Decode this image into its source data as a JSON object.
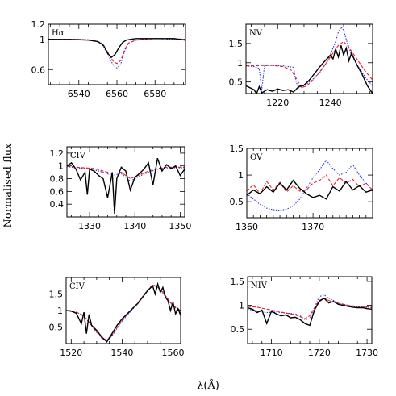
{
  "figure": {
    "ylabel": "Normalised flux",
    "xlabel": "λ(Å)"
  },
  "series_colors": {
    "observed": "#000000",
    "model_red": "#e8202a",
    "model_blue": "#2a35e6"
  },
  "chart_data": [
    {
      "type": "line",
      "label": "Hα",
      "xlim": [
        6524,
        6596
      ],
      "ylim": [
        0.4,
        1.2
      ],
      "xticks": [
        6540,
        6560,
        6580
      ],
      "yticks": [
        0.6,
        1,
        1.2
      ],
      "series": [
        {
          "role": "observed",
          "x": [
            6524,
            6535,
            6545,
            6550,
            6553,
            6555,
            6557,
            6559,
            6561,
            6563,
            6565,
            6567,
            6570,
            6580,
            6590,
            6596
          ],
          "y": [
            1.0,
            1.0,
            0.99,
            0.97,
            0.92,
            0.82,
            0.76,
            0.8,
            0.89,
            0.96,
            0.99,
            1.0,
            1.01,
            1.01,
            1.01,
            0.99
          ]
        },
        {
          "role": "model_red",
          "x": [
            6524,
            6540,
            6548,
            6552,
            6555,
            6558,
            6560,
            6562,
            6564,
            6566,
            6570,
            6580,
            6590,
            6596
          ],
          "y": [
            1.0,
            1.0,
            0.99,
            0.95,
            0.84,
            0.71,
            0.68,
            0.72,
            0.86,
            0.95,
            0.99,
            1.01,
            1.01,
            1.0
          ]
        },
        {
          "role": "model_blue",
          "x": [
            6524,
            6540,
            6548,
            6552,
            6555,
            6558,
            6560,
            6562,
            6564,
            6566,
            6570,
            6580,
            6590,
            6596
          ],
          "y": [
            1.0,
            1.0,
            0.99,
            0.94,
            0.81,
            0.66,
            0.62,
            0.67,
            0.84,
            0.95,
            0.99,
            1.01,
            1.0,
            0.99
          ]
        }
      ]
    },
    {
      "type": "line",
      "label": "NV",
      "xlim": [
        1208,
        1256
      ],
      "ylim": [
        0.2,
        2.0
      ],
      "xticks": [
        1220,
        1240
      ],
      "yticks": [
        0.5,
        1,
        1.5
      ],
      "series": [
        {
          "role": "observed",
          "x": [
            1208,
            1211,
            1212,
            1213,
            1214,
            1216,
            1218,
            1220,
            1222,
            1224,
            1226,
            1228,
            1230,
            1232,
            1234,
            1236,
            1238,
            1240,
            1241,
            1242,
            1243,
            1244,
            1245,
            1246,
            1247,
            1248,
            1250,
            1252,
            1254,
            1256
          ],
          "y": [
            0.4,
            0.3,
            0.2,
            0.38,
            0.22,
            0.3,
            0.26,
            0.32,
            0.28,
            0.3,
            0.24,
            0.38,
            0.42,
            0.55,
            0.72,
            0.9,
            1.05,
            1.2,
            1.1,
            1.35,
            1.15,
            1.45,
            1.2,
            1.38,
            1.05,
            1.25,
            0.95,
            0.7,
            0.4,
            0.2
          ]
        },
        {
          "role": "model_red",
          "x": [
            1208,
            1212,
            1215,
            1218,
            1222,
            1225,
            1227,
            1229,
            1231,
            1233,
            1235,
            1237,
            1239,
            1241,
            1243,
            1245,
            1247,
            1250,
            1253,
            1256
          ],
          "y": [
            0.92,
            0.92,
            0.93,
            0.93,
            0.9,
            0.82,
            0.6,
            0.35,
            0.4,
            0.52,
            0.68,
            0.86,
            1.05,
            1.25,
            1.45,
            1.55,
            1.4,
            1.1,
            0.8,
            0.55
          ]
        },
        {
          "role": "model_blue",
          "x": [
            1208,
            1211,
            1213,
            1214,
            1215,
            1218,
            1222,
            1226,
            1227,
            1228,
            1230,
            1233,
            1236,
            1239,
            1242,
            1243,
            1244,
            1245,
            1246,
            1248,
            1251,
            1254,
            1256
          ],
          "y": [
            0.92,
            0.9,
            0.85,
            0.3,
            0.92,
            0.93,
            0.92,
            0.88,
            0.5,
            0.35,
            0.4,
            0.55,
            0.75,
            1.05,
            1.55,
            1.8,
            1.92,
            1.85,
            1.6,
            1.2,
            0.85,
            0.55,
            0.4
          ]
        }
      ]
    },
    {
      "type": "line",
      "label": "CIV",
      "xlim": [
        1325,
        1351
      ],
      "ylim": [
        0.2,
        1.3
      ],
      "xticks": [
        1330,
        1340,
        1350
      ],
      "yticks": [
        0.4,
        0.6,
        0.8,
        1,
        1.2
      ],
      "series": [
        {
          "role": "observed",
          "x": [
            1325,
            1326,
            1327,
            1328,
            1329,
            1329.5,
            1330,
            1331,
            1332,
            1333,
            1334,
            1335,
            1335.5,
            1336,
            1337,
            1338,
            1339,
            1340,
            1341,
            1342,
            1343,
            1344,
            1345,
            1346,
            1347,
            1348,
            1349,
            1350,
            1351
          ],
          "y": [
            1.0,
            1.05,
            0.95,
            0.78,
            0.9,
            0.55,
            0.95,
            0.92,
            0.85,
            0.8,
            0.5,
            0.9,
            0.25,
            0.8,
            0.98,
            0.92,
            0.62,
            0.82,
            0.88,
            0.95,
            1.05,
            0.7,
            1.12,
            0.92,
            1.02,
            0.96,
            1.0,
            0.85,
            0.95
          ]
        },
        {
          "role": "model_red",
          "x": [
            1325,
            1327,
            1329,
            1331,
            1333,
            1335,
            1337,
            1339,
            1341,
            1343,
            1345,
            1347,
            1349,
            1351
          ],
          "y": [
            1.0,
            0.98,
            0.97,
            0.96,
            0.92,
            0.88,
            0.9,
            0.8,
            0.86,
            0.92,
            0.96,
            0.98,
            0.98,
            0.98
          ]
        },
        {
          "role": "model_blue",
          "x": [
            1325,
            1327,
            1329,
            1331,
            1333,
            1335,
            1337,
            1339,
            1341,
            1343,
            1345,
            1347,
            1349,
            1351
          ],
          "y": [
            0.99,
            0.97,
            0.96,
            0.94,
            0.9,
            0.85,
            0.88,
            0.76,
            0.84,
            0.9,
            0.95,
            0.97,
            0.97,
            0.97
          ]
        }
      ]
    },
    {
      "type": "line",
      "label": "OV",
      "xlim": [
        1360,
        1379
      ],
      "ylim": [
        0.2,
        1.5
      ],
      "xticks": [
        1360,
        1370
      ],
      "yticks": [
        0.5,
        1,
        1.5
      ],
      "series": [
        {
          "role": "observed",
          "x": [
            1360,
            1361,
            1362,
            1363,
            1364,
            1365,
            1366,
            1367,
            1368,
            1369,
            1370,
            1371,
            1372,
            1373,
            1374,
            1375,
            1376,
            1377,
            1378,
            1379
          ],
          "y": [
            0.62,
            0.72,
            0.65,
            0.78,
            0.68,
            0.85,
            0.72,
            0.9,
            0.75,
            0.65,
            0.58,
            0.62,
            0.55,
            0.78,
            0.7,
            0.88,
            0.72,
            0.8,
            0.68,
            0.72
          ]
        },
        {
          "role": "model_red",
          "x": [
            1360,
            1361,
            1362,
            1363,
            1364,
            1365,
            1366,
            1367,
            1368,
            1369,
            1370,
            1371,
            1372,
            1373,
            1374,
            1375,
            1376,
            1377,
            1378,
            1379
          ],
          "y": [
            0.7,
            0.82,
            0.65,
            0.88,
            0.72,
            0.86,
            0.68,
            0.8,
            0.7,
            0.72,
            0.85,
            0.9,
            1.0,
            0.8,
            0.95,
            0.85,
            0.92,
            0.78,
            0.85,
            0.72
          ]
        },
        {
          "role": "model_blue",
          "x": [
            1360,
            1361,
            1362,
            1363,
            1364,
            1365,
            1366,
            1367,
            1368,
            1369,
            1370,
            1371,
            1372,
            1373,
            1374,
            1375,
            1376,
            1377,
            1378,
            1379
          ],
          "y": [
            0.65,
            0.55,
            0.45,
            0.38,
            0.35,
            0.34,
            0.36,
            0.42,
            0.55,
            0.75,
            0.95,
            1.1,
            1.28,
            1.12,
            1.0,
            1.05,
            1.2,
            1.0,
            0.85,
            0.7
          ]
        }
      ]
    },
    {
      "type": "line",
      "label": "CIV",
      "xlim": [
        1518,
        1563
      ],
      "ylim": [
        0.0,
        2.0
      ],
      "xticks": [
        1520,
        1540,
        1560
      ],
      "yticks": [
        0.5,
        1,
        1.5
      ],
      "series": [
        {
          "role": "observed",
          "x": [
            1518,
            1520,
            1522,
            1524,
            1525,
            1526,
            1527,
            1528,
            1530,
            1532,
            1534,
            1536,
            1538,
            1540,
            1542,
            1544,
            1546,
            1548,
            1550,
            1552,
            1553,
            1554,
            1555,
            1556,
            1557,
            1558,
            1559,
            1560,
            1561,
            1562,
            1563
          ],
          "y": [
            1.0,
            0.98,
            0.92,
            0.6,
            0.95,
            0.3,
            0.88,
            0.55,
            0.4,
            0.2,
            0.05,
            0.3,
            0.55,
            0.75,
            0.9,
            1.05,
            1.2,
            1.4,
            1.6,
            1.75,
            1.5,
            1.8,
            1.55,
            1.7,
            1.4,
            1.3,
            1.0,
            1.25,
            0.9,
            1.05,
            0.85
          ]
        },
        {
          "role": "model_red",
          "x": [
            1518,
            1520,
            1522,
            1524,
            1526,
            1528,
            1530,
            1532,
            1534,
            1536,
            1538,
            1540,
            1542,
            1544,
            1546,
            1548,
            1550,
            1552,
            1554,
            1556,
            1558,
            1560,
            1563
          ],
          "y": [
            1.0,
            0.98,
            0.95,
            0.88,
            0.75,
            0.55,
            0.35,
            0.18,
            0.1,
            0.25,
            0.48,
            0.7,
            0.88,
            1.05,
            1.22,
            1.42,
            1.62,
            1.78,
            1.72,
            1.55,
            1.35,
            1.15,
            1.0
          ]
        },
        {
          "role": "model_blue",
          "x": [
            1518,
            1520,
            1522,
            1524,
            1526,
            1528,
            1530,
            1532,
            1534,
            1536,
            1538,
            1540,
            1542,
            1544,
            1546,
            1548,
            1550,
            1552,
            1554,
            1556,
            1558,
            1560,
            1563
          ],
          "y": [
            1.0,
            0.98,
            0.95,
            0.88,
            0.74,
            0.54,
            0.34,
            0.16,
            0.08,
            0.23,
            0.46,
            0.68,
            0.86,
            1.03,
            1.2,
            1.4,
            1.6,
            1.76,
            1.7,
            1.53,
            1.33,
            1.13,
            0.98
          ]
        }
      ]
    },
    {
      "type": "line",
      "label": "NIV",
      "xlim": [
        1705,
        1731
      ],
      "ylim": [
        0.2,
        1.6
      ],
      "xticks": [
        1710,
        1720,
        1730
      ],
      "yticks": [
        0.5,
        1,
        1.5
      ],
      "series": [
        {
          "role": "observed",
          "x": [
            1705,
            1706,
            1707,
            1708,
            1709,
            1710,
            1711,
            1712,
            1713,
            1714,
            1715,
            1716,
            1717,
            1718,
            1719,
            1720,
            1721,
            1722,
            1723,
            1724,
            1725,
            1726,
            1727,
            1728,
            1729,
            1730,
            1731
          ],
          "y": [
            0.95,
            0.92,
            0.85,
            0.9,
            0.62,
            0.88,
            0.82,
            0.78,
            0.8,
            0.74,
            0.75,
            0.7,
            0.62,
            0.58,
            0.9,
            1.08,
            1.15,
            1.05,
            1.08,
            1.02,
            1.0,
            0.98,
            0.96,
            0.95,
            0.95,
            0.93,
            0.92
          ]
        },
        {
          "role": "model_red",
          "x": [
            1705,
            1707,
            1709,
            1711,
            1713,
            1715,
            1716,
            1717,
            1718,
            1719,
            1720,
            1721,
            1722,
            1724,
            1726,
            1728,
            1731
          ],
          "y": [
            0.98,
            0.96,
            0.92,
            0.88,
            0.84,
            0.8,
            0.76,
            0.72,
            0.78,
            0.95,
            1.1,
            1.15,
            1.1,
            1.04,
            1.0,
            0.98,
            0.96
          ]
        },
        {
          "role": "model_blue",
          "x": [
            1705,
            1707,
            1709,
            1711,
            1713,
            1715,
            1716,
            1717,
            1718,
            1719,
            1720,
            1721,
            1722,
            1724,
            1726,
            1728,
            1731
          ],
          "y": [
            0.92,
            0.88,
            0.85,
            0.86,
            0.84,
            0.82,
            0.78,
            0.7,
            0.72,
            0.95,
            1.18,
            1.22,
            1.15,
            1.05,
            1.0,
            0.97,
            0.95
          ]
        }
      ]
    }
  ]
}
